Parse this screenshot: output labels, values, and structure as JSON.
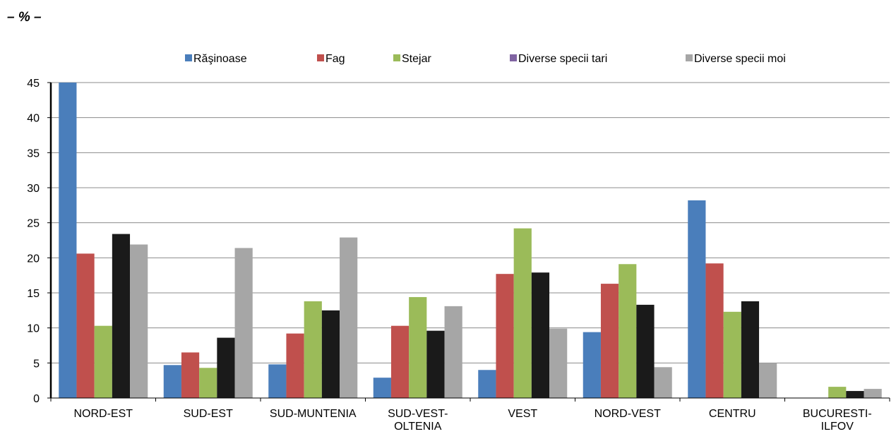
{
  "unit_label": "– % –",
  "chart_data": {
    "type": "bar",
    "categories": [
      [
        "NORD-EST"
      ],
      [
        "SUD-EST"
      ],
      [
        "SUD-MUNTENIA"
      ],
      [
        "SUD-VEST-",
        "OLTENIA"
      ],
      [
        "VEST"
      ],
      [
        "NORD-VEST"
      ],
      [
        "CENTRU"
      ],
      [
        "BUCURESTI-",
        "ILFOV"
      ]
    ],
    "series": [
      {
        "name": "Răşinoase",
        "color": "#4a7ebb",
        "values": [
          45,
          4.7,
          4.8,
          2.9,
          4.0,
          9.4,
          28.2,
          0
        ]
      },
      {
        "name": "Fag",
        "color": "#c0504d",
        "values": [
          20.6,
          6.5,
          9.2,
          10.3,
          17.7,
          16.3,
          19.2,
          0
        ]
      },
      {
        "name": "Stejar",
        "color": "#9bbb59",
        "values": [
          10.3,
          4.3,
          13.8,
          14.4,
          24.2,
          19.1,
          12.3,
          1.6
        ]
      },
      {
        "name": "Diverse specii tari",
        "color": "#8064a2",
        "values": [
          23.4,
          8.6,
          12.5,
          9.6,
          17.9,
          13.3,
          13.8,
          1.0
        ],
        "display_color": "#1a1a1a"
      },
      {
        "name": "Diverse specii moi",
        "color": "#a6a6a6",
        "values": [
          21.9,
          21.4,
          22.9,
          13.1,
          9.9,
          4.4,
          5.0,
          1.3
        ]
      }
    ],
    "y_ticks": [
      "0",
      "5",
      "10",
      "15",
      "20",
      "25",
      "30",
      "35",
      "40",
      "45"
    ],
    "ylim": [
      0,
      45
    ],
    "grid": true,
    "legend_position": "top"
  }
}
